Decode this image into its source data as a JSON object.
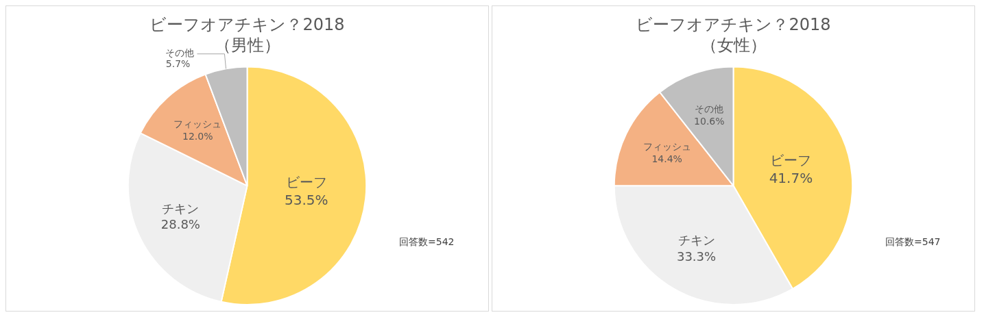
{
  "chart_data": [
    {
      "type": "pie",
      "title": "ビーフオアチキン？2018",
      "subtitle": "（男性）",
      "categories": [
        "ビーフ",
        "チキン",
        "フィッシュ",
        "その他"
      ],
      "values": [
        53.5,
        28.8,
        12.0,
        5.7
      ],
      "value_labels": [
        "53.5%",
        "28.8%",
        "12.0%",
        "5.7%"
      ],
      "colors": [
        "#ffd966",
        "#efefef",
        "#f4b183",
        "#bfbfbf"
      ],
      "annotations": [
        "回答数=542"
      ],
      "legend": false
    },
    {
      "type": "pie",
      "title": "ビーフオアチキン？2018",
      "subtitle": "（女性）",
      "categories": [
        "ビーフ",
        "チキン",
        "フィッシュ",
        "その他"
      ],
      "values": [
        41.7,
        33.3,
        14.4,
        10.6
      ],
      "value_labels": [
        "41.7%",
        "33.3%",
        "14.4%",
        "10.6%"
      ],
      "colors": [
        "#ffd966",
        "#efefef",
        "#f4b183",
        "#bfbfbf"
      ],
      "annotations": [
        "回答数=547"
      ],
      "legend": false
    }
  ]
}
